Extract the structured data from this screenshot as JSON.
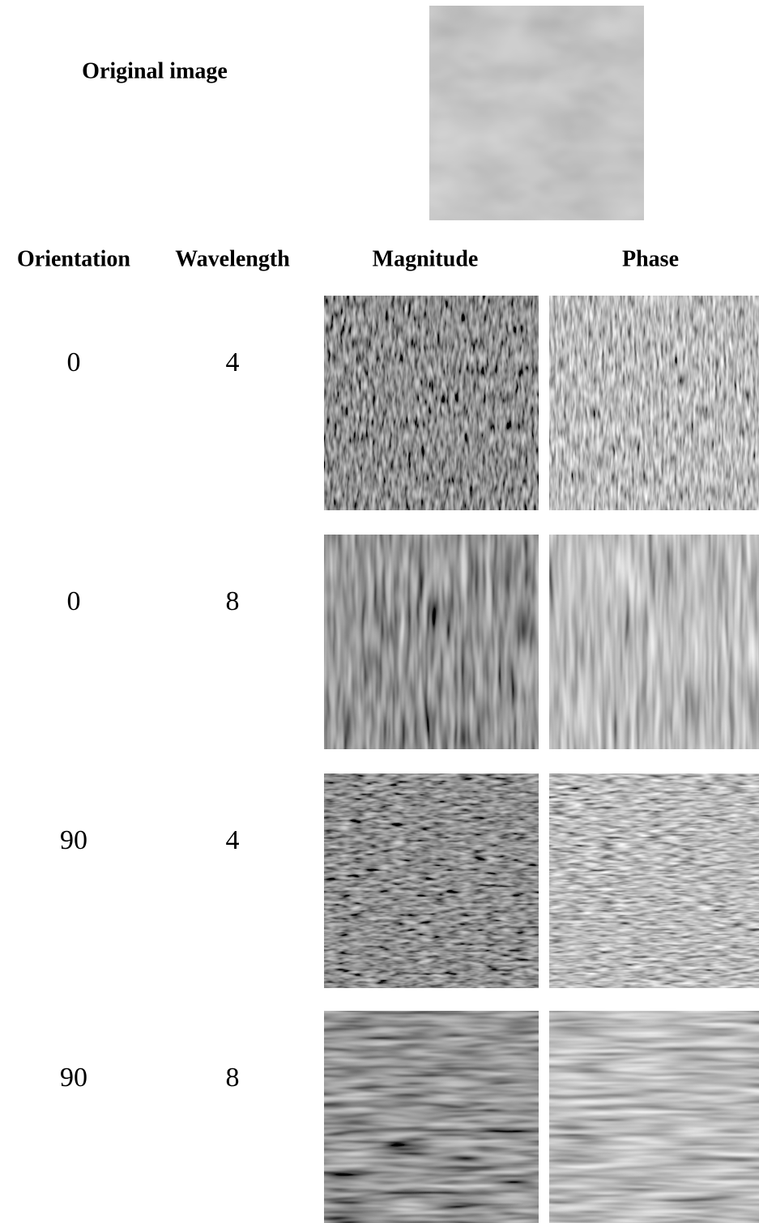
{
  "header": {
    "title": "Original image"
  },
  "table": {
    "columns": [
      "Orientation",
      "Wavelength",
      "Magnitude",
      "Phase"
    ],
    "rows": [
      [
        0,
        4
      ],
      [
        0,
        8
      ],
      [
        90,
        4
      ],
      [
        90,
        8
      ]
    ]
  }
}
